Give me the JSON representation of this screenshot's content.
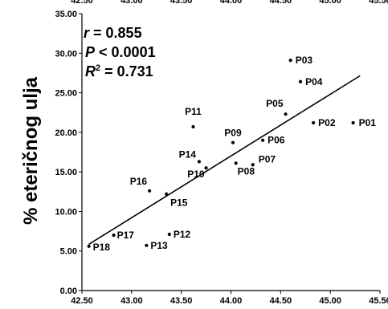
{
  "chart_data": {
    "type": "scatter",
    "ylabel": "% eteričnog ulja",
    "xlim": [
      42.5,
      45.5
    ],
    "ylim": [
      0,
      35
    ],
    "x_ticks": [
      "42.50",
      "43.00",
      "43.50",
      "44.00",
      "44.50",
      "45.00",
      "45.50"
    ],
    "y_ticks": [
      "0.00",
      "5.00",
      "10.00",
      "15.00",
      "20.00",
      "25.00",
      "30.00",
      "35.00"
    ],
    "top_x_ticks_visible": true,
    "annotations": {
      "r_symbol": "r",
      "r_value": " = 0.855",
      "p_symbol": "P",
      "p_value": " < 0.0001",
      "r2_symbol": "R",
      "r2_exp": "2",
      "r2_value": " = 0.731"
    },
    "trendline": {
      "x": [
        42.57,
        45.3
      ],
      "y": [
        5.85,
        27.15
      ]
    },
    "points": [
      {
        "label": "P01",
        "x": 45.23,
        "y": 21.2
      },
      {
        "label": "P02",
        "x": 44.83,
        "y": 21.2
      },
      {
        "label": "P03",
        "x": 44.6,
        "y": 29.1
      },
      {
        "label": "P04",
        "x": 44.7,
        "y": 26.4
      },
      {
        "label": "P05",
        "x": 44.55,
        "y": 22.3
      },
      {
        "label": "P06",
        "x": 44.32,
        "y": 19.0
      },
      {
        "label": "P07",
        "x": 44.22,
        "y": 15.9
      },
      {
        "label": "P08",
        "x": 44.05,
        "y": 16.1
      },
      {
        "label": "P09",
        "x": 44.02,
        "y": 18.7
      },
      {
        "label": "P10",
        "x": 43.75,
        "y": 15.5
      },
      {
        "label": "P11",
        "x": 43.62,
        "y": 20.7
      },
      {
        "label": "P12",
        "x": 43.38,
        "y": 7.1
      },
      {
        "label": "P13",
        "x": 43.15,
        "y": 5.7
      },
      {
        "label": "P14",
        "x": 43.68,
        "y": 16.3
      },
      {
        "label": "P15",
        "x": 43.35,
        "y": 12.2
      },
      {
        "label": "P16",
        "x": 43.18,
        "y": 12.6
      },
      {
        "label": "P17",
        "x": 42.82,
        "y": 7.0
      },
      {
        "label": "P18",
        "x": 42.57,
        "y": 5.6
      }
    ]
  }
}
